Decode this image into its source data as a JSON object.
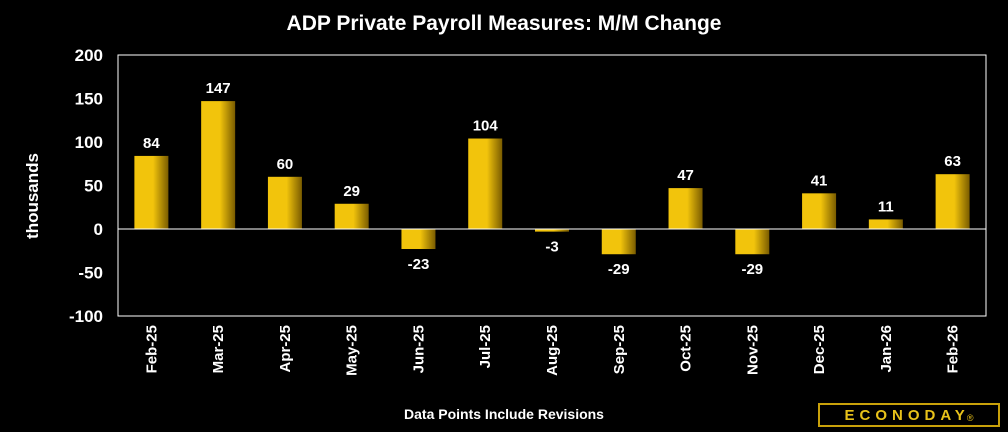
{
  "chart_data": {
    "type": "bar",
    "title": "ADP Private Payroll Measures: M/M Change",
    "ylabel": "thousands",
    "xlabel": "",
    "categories": [
      "Feb-25",
      "Mar-25",
      "Apr-25",
      "May-25",
      "Jun-25",
      "Jul-25",
      "Aug-25",
      "Sep-25",
      "Oct-25",
      "Nov-25",
      "Dec-25",
      "Jan-26",
      "Feb-26"
    ],
    "values": [
      84,
      147,
      60,
      29,
      -23,
      104,
      -3,
      -29,
      47,
      -29,
      41,
      11,
      63
    ],
    "ylim": [
      -100,
      200
    ],
    "yticks": [
      200,
      150,
      100,
      50,
      0,
      -50,
      -100
    ],
    "grid": false,
    "bar_color": "#f2c40c",
    "bar_color_dark": "#7a5c00"
  },
  "footnote": "Data Points Include Revisions",
  "brand": {
    "name": "ECONODAY",
    "mark": "®",
    "color": "#e8c21a"
  }
}
